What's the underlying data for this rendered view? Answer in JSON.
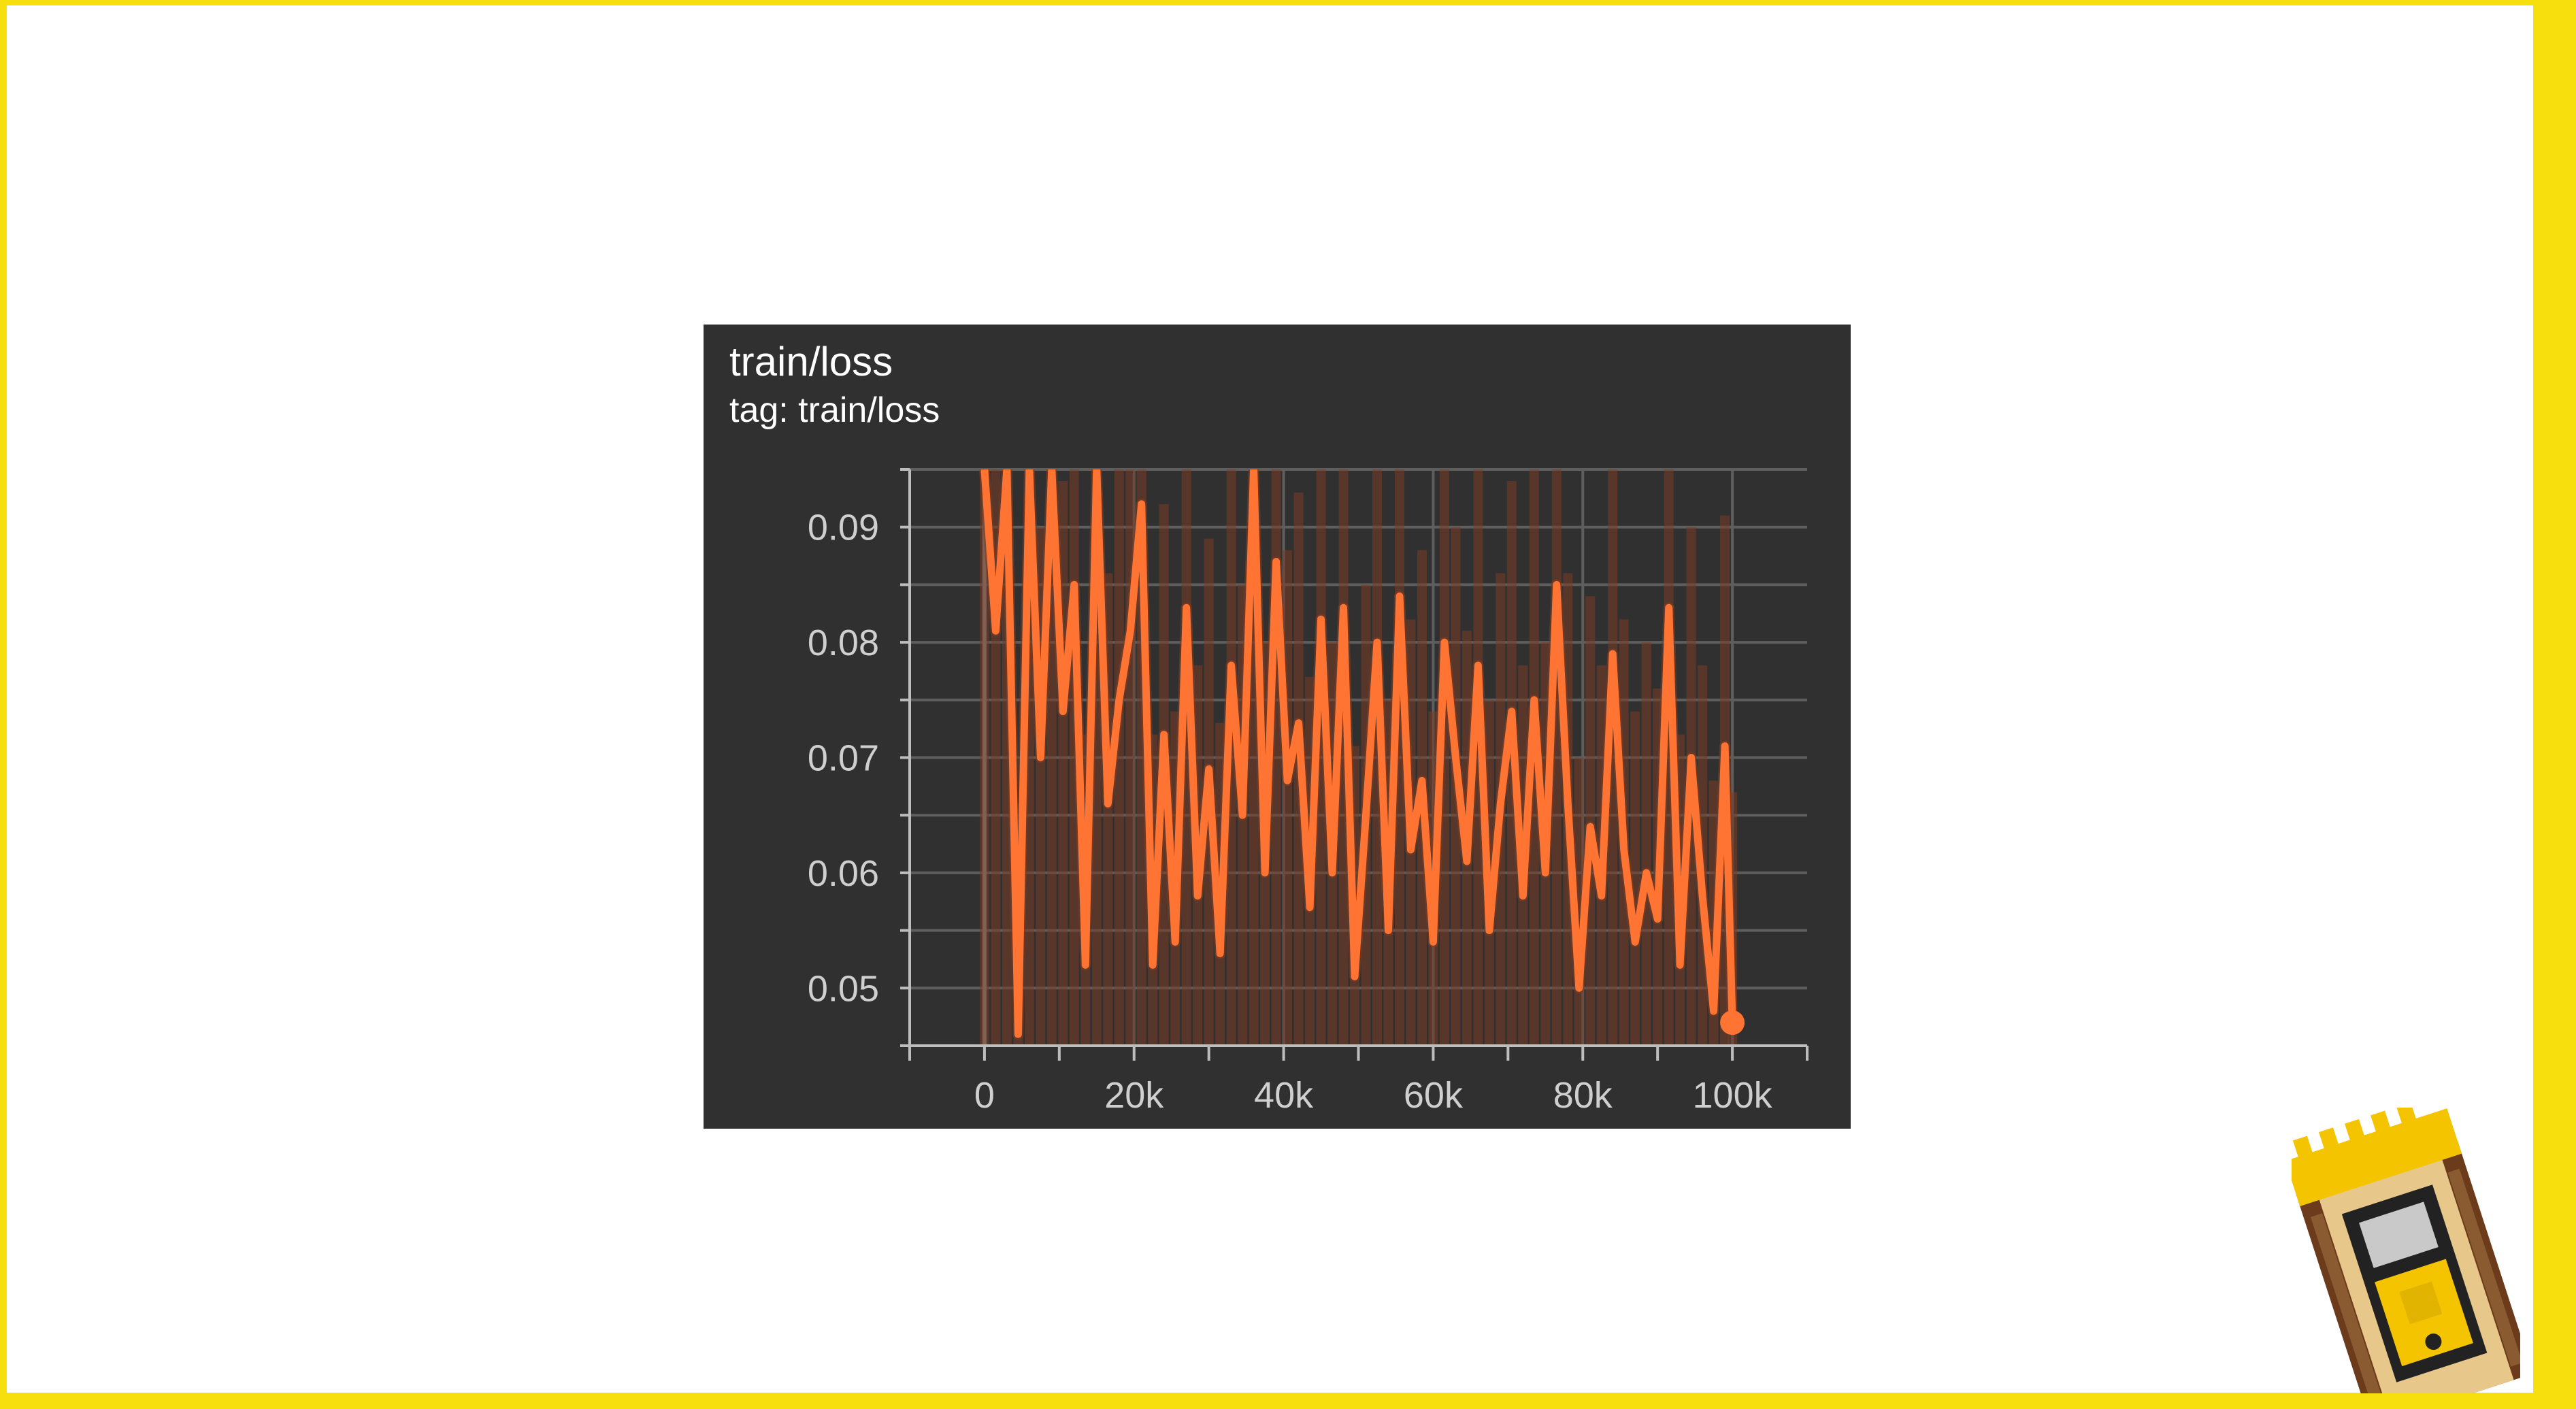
{
  "chart_data": {
    "type": "line",
    "title": "train/loss",
    "subtitle": "tag: train/loss",
    "xlim": [
      -10000,
      110000
    ],
    "ylim": [
      0.045,
      0.095
    ],
    "x_ticks": [
      0,
      20000,
      40000,
      60000,
      80000,
      100000
    ],
    "x_tick_labels": [
      "0",
      "20k",
      "40k",
      "60k",
      "80k",
      "100k"
    ],
    "x_minor_ticks": [
      -10000,
      10000,
      30000,
      50000,
      70000,
      90000,
      110000
    ],
    "y_ticks": [
      0.05,
      0.06,
      0.07,
      0.08,
      0.09
    ],
    "y_tick_labels": [
      "0.05",
      "0.06",
      "0.07",
      "0.08",
      "0.09"
    ],
    "y_minor_ticks": [
      0.045,
      0.055,
      0.065,
      0.075,
      0.085,
      0.095
    ],
    "grid": true,
    "colors": {
      "line": "#ff7433",
      "raw_line": "#7a3d24",
      "background": "#303030",
      "grid": "#5e5e5e",
      "zero_axis": "#8a8a8a",
      "text": "#cfcfcf"
    },
    "series": [
      {
        "x": [
          0,
          1500,
          3000,
          4500,
          6000,
          7500,
          9000,
          10500,
          12000,
          13500,
          15000,
          16500,
          18000,
          19500,
          21000,
          22500,
          24000,
          25500,
          27000,
          28500,
          30000,
          31500,
          33000,
          34500,
          36000,
          37500,
          39000,
          40500,
          42000,
          43500,
          45000,
          46500,
          48000,
          49500,
          51000,
          52500,
          54000,
          55500,
          57000,
          58500,
          60000,
          61500,
          63000,
          64500,
          66000,
          67500,
          69000,
          70500,
          72000,
          73500,
          75000,
          76500,
          78000,
          79500,
          81000,
          82500,
          84000,
          85500,
          87000,
          88500,
          90000,
          91500,
          93000,
          94500,
          96000,
          97500,
          99000,
          100000
        ],
        "y": [
          0.095,
          0.081,
          0.095,
          0.046,
          0.095,
          0.07,
          0.095,
          0.074,
          0.085,
          0.052,
          0.095,
          0.066,
          0.075,
          0.081,
          0.092,
          0.052,
          0.072,
          0.054,
          0.083,
          0.058,
          0.069,
          0.053,
          0.078,
          0.065,
          0.095,
          0.06,
          0.087,
          0.068,
          0.073,
          0.057,
          0.082,
          0.06,
          0.083,
          0.051,
          0.065,
          0.08,
          0.055,
          0.084,
          0.062,
          0.068,
          0.054,
          0.08,
          0.07,
          0.061,
          0.078,
          0.055,
          0.066,
          0.074,
          0.058,
          0.075,
          0.06,
          0.085,
          0.066,
          0.05,
          0.064,
          0.058,
          0.079,
          0.062,
          0.054,
          0.06,
          0.056,
          0.083,
          0.052,
          0.07,
          0.058,
          0.048,
          0.071,
          0.047
        ]
      }
    ]
  }
}
